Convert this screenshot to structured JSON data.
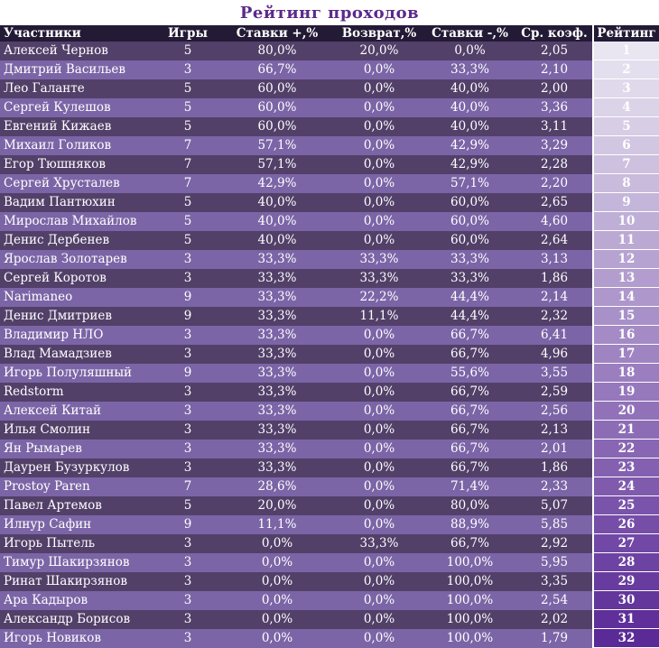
{
  "title": "Рейтинг проходов",
  "columns": [
    "Участники",
    "Игры",
    "Ставки +,%",
    "Возврат,%",
    "Ставки -,%",
    "Ср. коэф.",
    "Рейтинг"
  ],
  "rows": [
    {
      "name": "Алексей Чернов",
      "games": "5",
      "plus": "80,0%",
      "refund": "20,0%",
      "minus": "0,0%",
      "coef": "2,05",
      "rank": "1"
    },
    {
      "name": "Дмитрий Васильев",
      "games": "3",
      "plus": "66,7%",
      "refund": "0,0%",
      "minus": "33,3%",
      "coef": "2,10",
      "rank": "2"
    },
    {
      "name": "Лео Галанте",
      "games": "5",
      "plus": "60,0%",
      "refund": "0,0%",
      "minus": "40,0%",
      "coef": "2,00",
      "rank": "3"
    },
    {
      "name": "Сергей Кулешов",
      "games": "5",
      "plus": "60,0%",
      "refund": "0,0%",
      "minus": "40,0%",
      "coef": "3,36",
      "rank": "4"
    },
    {
      "name": "Евгений Кижаев",
      "games": "5",
      "plus": "60,0%",
      "refund": "0,0%",
      "minus": "40,0%",
      "coef": "3,11",
      "rank": "5"
    },
    {
      "name": "Михаил Голиков",
      "games": "7",
      "plus": "57,1%",
      "refund": "0,0%",
      "minus": "42,9%",
      "coef": "3,29",
      "rank": "6"
    },
    {
      "name": "Егор Тюшняков",
      "games": "7",
      "plus": "57,1%",
      "refund": "0,0%",
      "minus": "42,9%",
      "coef": "2,28",
      "rank": "7"
    },
    {
      "name": "Сергей Хрусталев",
      "games": "7",
      "plus": "42,9%",
      "refund": "0,0%",
      "minus": "57,1%",
      "coef": "2,20",
      "rank": "8"
    },
    {
      "name": "Вадим Пантюхин",
      "games": "5",
      "plus": "40,0%",
      "refund": "0,0%",
      "minus": "60,0%",
      "coef": "2,65",
      "rank": "9"
    },
    {
      "name": "Мирослав Михайлов",
      "games": "5",
      "plus": "40,0%",
      "refund": "0,0%",
      "minus": "60,0%",
      "coef": "4,60",
      "rank": "10"
    },
    {
      "name": "Денис Дербенев",
      "games": "5",
      "plus": "40,0%",
      "refund": "0,0%",
      "minus": "60,0%",
      "coef": "2,64",
      "rank": "11"
    },
    {
      "name": "Ярослав Золотарев",
      "games": "3",
      "plus": "33,3%",
      "refund": "33,3%",
      "minus": "33,3%",
      "coef": "3,13",
      "rank": "12"
    },
    {
      "name": "Сергей Коротов",
      "games": "3",
      "plus": "33,3%",
      "refund": "33,3%",
      "minus": "33,3%",
      "coef": "1,86",
      "rank": "13"
    },
    {
      "name": "Narimaneo",
      "games": "9",
      "plus": "33,3%",
      "refund": "22,2%",
      "minus": "44,4%",
      "coef": "2,14",
      "rank": "14"
    },
    {
      "name": "Денис Дмитриев",
      "games": "9",
      "plus": "33,3%",
      "refund": "11,1%",
      "minus": "44,4%",
      "coef": "2,32",
      "rank": "15"
    },
    {
      "name": "Владимир НЛО",
      "games": "3",
      "plus": "33,3%",
      "refund": "0,0%",
      "minus": "66,7%",
      "coef": "6,41",
      "rank": "16"
    },
    {
      "name": "Влад Мамадзиев",
      "games": "3",
      "plus": "33,3%",
      "refund": "0,0%",
      "minus": "66,7%",
      "coef": "4,96",
      "rank": "17"
    },
    {
      "name": "Игорь Полуляшный",
      "games": "9",
      "plus": "33,3%",
      "refund": "0,0%",
      "minus": "55,6%",
      "coef": "3,55",
      "rank": "18"
    },
    {
      "name": "Redstorm",
      "games": "3",
      "plus": "33,3%",
      "refund": "0,0%",
      "minus": "66,7%",
      "coef": "2,59",
      "rank": "19"
    },
    {
      "name": "Алексей Китай",
      "games": "3",
      "plus": "33,3%",
      "refund": "0,0%",
      "minus": "66,7%",
      "coef": "2,56",
      "rank": "20"
    },
    {
      "name": "Илья Смолин",
      "games": "3",
      "plus": "33,3%",
      "refund": "0,0%",
      "minus": "66,7%",
      "coef": "2,13",
      "rank": "21"
    },
    {
      "name": "Ян Рымарев",
      "games": "3",
      "plus": "33,3%",
      "refund": "0,0%",
      "minus": "66,7%",
      "coef": "2,01",
      "rank": "22"
    },
    {
      "name": "Даурен Бузуркулов",
      "games": "3",
      "plus": "33,3%",
      "refund": "0,0%",
      "minus": "66,7%",
      "coef": "1,86",
      "rank": "23"
    },
    {
      "name": "Prostoy Paren",
      "games": "7",
      "plus": "28,6%",
      "refund": "0,0%",
      "minus": "71,4%",
      "coef": "2,33",
      "rank": "24"
    },
    {
      "name": "Павел Артемов",
      "games": "5",
      "plus": "20,0%",
      "refund": "0,0%",
      "minus": "80,0%",
      "coef": "5,07",
      "rank": "25"
    },
    {
      "name": "Илнур Сафин",
      "games": "9",
      "plus": "11,1%",
      "refund": "0,0%",
      "minus": "88,9%",
      "coef": "5,85",
      "rank": "26"
    },
    {
      "name": "Игорь Пытель",
      "games": "3",
      "plus": "0,0%",
      "refund": "33,3%",
      "minus": "66,7%",
      "coef": "2,92",
      "rank": "27"
    },
    {
      "name": "Тимур Шакирзянов",
      "games": "3",
      "plus": "0,0%",
      "refund": "0,0%",
      "minus": "100,0%",
      "coef": "5,95",
      "rank": "28"
    },
    {
      "name": "Ринат Шакирзянов",
      "games": "3",
      "plus": "0,0%",
      "refund": "0,0%",
      "minus": "100,0%",
      "coef": "3,35",
      "rank": "29"
    },
    {
      "name": "Ара Кадыров",
      "games": "3",
      "plus": "0,0%",
      "refund": "0,0%",
      "minus": "100,0%",
      "coef": "2,54",
      "rank": "30"
    },
    {
      "name": "Александр Борисов",
      "games": "3",
      "plus": "0,0%",
      "refund": "0,0%",
      "minus": "100,0%",
      "coef": "2,02",
      "rank": "31"
    },
    {
      "name": "Игорь Новиков",
      "games": "3",
      "plus": "0,0%",
      "refund": "0,0%",
      "minus": "100,0%",
      "coef": "1,79",
      "rank": "32"
    }
  ],
  "colors": {
    "title": "#5b2a8c",
    "header_bg": "#231a35",
    "row_dark": "#524069",
    "row_light": "#7b65a6",
    "rank_start": "#e9e5f1",
    "rank_end": "#5a2a96"
  }
}
